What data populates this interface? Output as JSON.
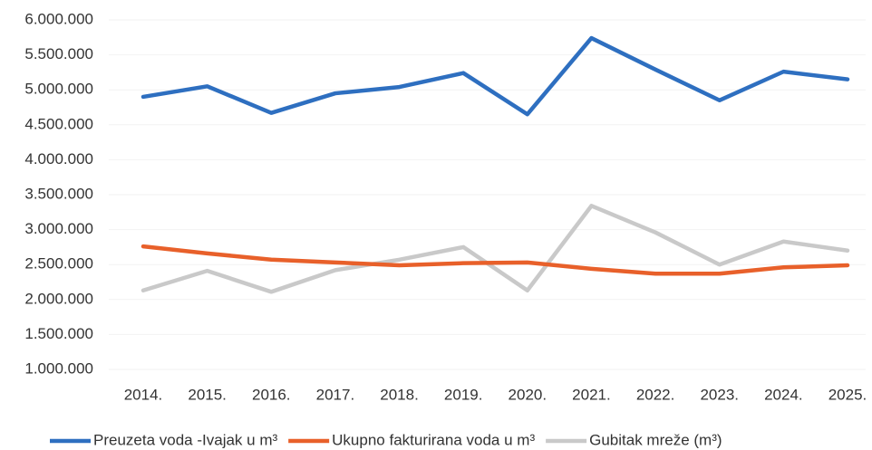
{
  "chart_data": {
    "type": "line",
    "categories": [
      "2014.",
      "2015.",
      "2016.",
      "2017.",
      "2018.",
      "2019.",
      "2020.",
      "2021.",
      "2022.",
      "2023.",
      "2024.",
      "2025."
    ],
    "series": [
      {
        "name": "Preuzeta voda -Ivajak u m³",
        "color": "#2e6fc0",
        "values": [
          4900000,
          5050000,
          4670000,
          4950000,
          5040000,
          5240000,
          4650000,
          5740000,
          5290000,
          4850000,
          5260000,
          5150000
        ]
      },
      {
        "name": "Ukupno fakturirana voda u m³",
        "color": "#e8602a",
        "values": [
          2760000,
          2660000,
          2570000,
          2530000,
          2490000,
          2520000,
          2530000,
          2440000,
          2370000,
          2370000,
          2460000,
          2490000
        ]
      },
      {
        "name": "Gubitak mreže (m³)",
        "color": "#c9c9c9",
        "values": [
          2130000,
          2410000,
          2110000,
          2420000,
          2570000,
          2750000,
          2130000,
          3340000,
          2960000,
          2500000,
          2830000,
          2700000
        ]
      }
    ],
    "ylim": [
      1000000,
      6000000
    ],
    "yticks": [
      {
        "value": 1000000,
        "label": "1.000.000"
      },
      {
        "value": 1500000,
        "label": "1.500.000"
      },
      {
        "value": 2000000,
        "label": "2.000.000"
      },
      {
        "value": 2500000,
        "label": "2.500.000"
      },
      {
        "value": 3000000,
        "label": "3.000.000"
      },
      {
        "value": 3500000,
        "label": "3.500.000"
      },
      {
        "value": 4000000,
        "label": "4.000.000"
      },
      {
        "value": 4500000,
        "label": "4.500.000"
      },
      {
        "value": 5000000,
        "label": "5.000.000"
      },
      {
        "value": 5500000,
        "label": "5.500.000"
      },
      {
        "value": 6000000,
        "label": "6.000.000"
      }
    ],
    "grid": true,
    "legend": "bottom"
  }
}
